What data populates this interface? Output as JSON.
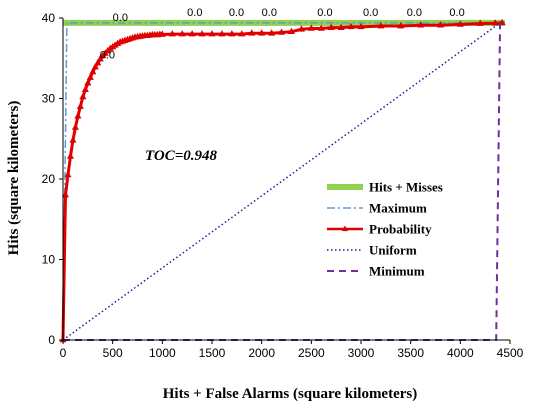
{
  "chart_data": {
    "type": "line",
    "title": "",
    "annotation": "TOC=0.948",
    "xlabel": "Hits + False Alarms (square kilometers)",
    "ylabel": "Hits (square kilometers)",
    "xlim": [
      0,
      4500
    ],
    "ylim": [
      0,
      40
    ],
    "xticks": [
      "0",
      "500",
      "1000",
      "1500",
      "2000",
      "2500",
      "3000",
      "3500",
      "4000",
      "4500"
    ],
    "yticks": [
      "0",
      "10",
      "20",
      "30",
      "40"
    ],
    "grid": false,
    "legend_position": "right",
    "series": [
      {
        "name": "Hits + Misses",
        "style": "thick-solid",
        "color": "#92d050",
        "points": [
          [
            0,
            39.4
          ],
          [
            4450,
            39.4
          ]
        ]
      },
      {
        "name": "Maximum",
        "style": "dash-dot",
        "color": "#5b9bd5",
        "points": [
          [
            0,
            0
          ],
          [
            39,
            39.4
          ],
          [
            4450,
            39.4
          ]
        ]
      },
      {
        "name": "Probability",
        "style": "line-triangle-markers",
        "color": "#e00000",
        "points": [
          [
            0,
            0
          ],
          [
            25,
            18
          ],
          [
            50,
            20.5
          ],
          [
            75,
            22.8
          ],
          [
            100,
            24.8
          ],
          [
            125,
            26.4
          ],
          [
            150,
            27.8
          ],
          [
            175,
            29
          ],
          [
            200,
            30.2
          ],
          [
            225,
            31.1
          ],
          [
            250,
            31.9
          ],
          [
            275,
            32.6
          ],
          [
            300,
            33.3
          ],
          [
            325,
            33.9
          ],
          [
            350,
            34.4
          ],
          [
            375,
            34.9
          ],
          [
            400,
            35.3
          ],
          [
            425,
            35.6
          ],
          [
            450,
            35.9
          ],
          [
            475,
            36.2
          ],
          [
            500,
            36.4
          ],
          [
            525,
            36.6
          ],
          [
            550,
            36.8
          ],
          [
            575,
            37
          ],
          [
            600,
            37.1
          ],
          [
            625,
            37.2
          ],
          [
            650,
            37.3
          ],
          [
            675,
            37.4
          ],
          [
            700,
            37.5
          ],
          [
            725,
            37.6
          ],
          [
            750,
            37.65
          ],
          [
            775,
            37.7
          ],
          [
            800,
            37.75
          ],
          [
            825,
            37.8
          ],
          [
            850,
            37.8
          ],
          [
            875,
            37.85
          ],
          [
            900,
            37.9
          ],
          [
            925,
            37.9
          ],
          [
            950,
            37.9
          ],
          [
            975,
            37.95
          ],
          [
            1000,
            37.95
          ],
          [
            1100,
            38
          ],
          [
            1200,
            38
          ],
          [
            1300,
            38
          ],
          [
            1400,
            38
          ],
          [
            1500,
            38
          ],
          [
            1600,
            38
          ],
          [
            1700,
            38
          ],
          [
            1800,
            38
          ],
          [
            1900,
            38.1
          ],
          [
            2000,
            38.1
          ],
          [
            2100,
            38.1
          ],
          [
            2200,
            38.2
          ],
          [
            2300,
            38.3
          ],
          [
            2400,
            38.6
          ],
          [
            2500,
            38.7
          ],
          [
            2600,
            38.7
          ],
          [
            2700,
            38.8
          ],
          [
            2800,
            38.8
          ],
          [
            2900,
            38.9
          ],
          [
            3000,
            38.9
          ],
          [
            3200,
            39
          ],
          [
            3400,
            39
          ],
          [
            3600,
            39.1
          ],
          [
            3800,
            39.1
          ],
          [
            4000,
            39.2
          ],
          [
            4200,
            39.3
          ],
          [
            4350,
            39.35
          ],
          [
            4420,
            39.4
          ]
        ]
      },
      {
        "name": "Uniform",
        "style": "dotted",
        "color": "#1f1f9a",
        "points": [
          [
            0,
            0
          ],
          [
            4400,
            39.4
          ]
        ]
      },
      {
        "name": "Minimum",
        "style": "dashed",
        "color": "#7030a0",
        "points": [
          [
            0,
            0
          ],
          [
            4361,
            0
          ],
          [
            4400,
            39.4
          ]
        ]
      }
    ],
    "data_labels": [
      {
        "text": "0.0",
        "x": 500,
        "y": 39.4
      },
      {
        "text": "0.0",
        "x": 1250,
        "y": 40
      },
      {
        "text": "0.0",
        "x": 1670,
        "y": 40
      },
      {
        "text": "0.0",
        "x": 2000,
        "y": 40
      },
      {
        "text": "0.0",
        "x": 2560,
        "y": 40
      },
      {
        "text": "0.0",
        "x": 3020,
        "y": 40
      },
      {
        "text": "0.0",
        "x": 3460,
        "y": 40
      },
      {
        "text": "0.0",
        "x": 3890,
        "y": 40
      },
      {
        "text": "0.0",
        "x": 370,
        "y": 34.7
      }
    ]
  }
}
